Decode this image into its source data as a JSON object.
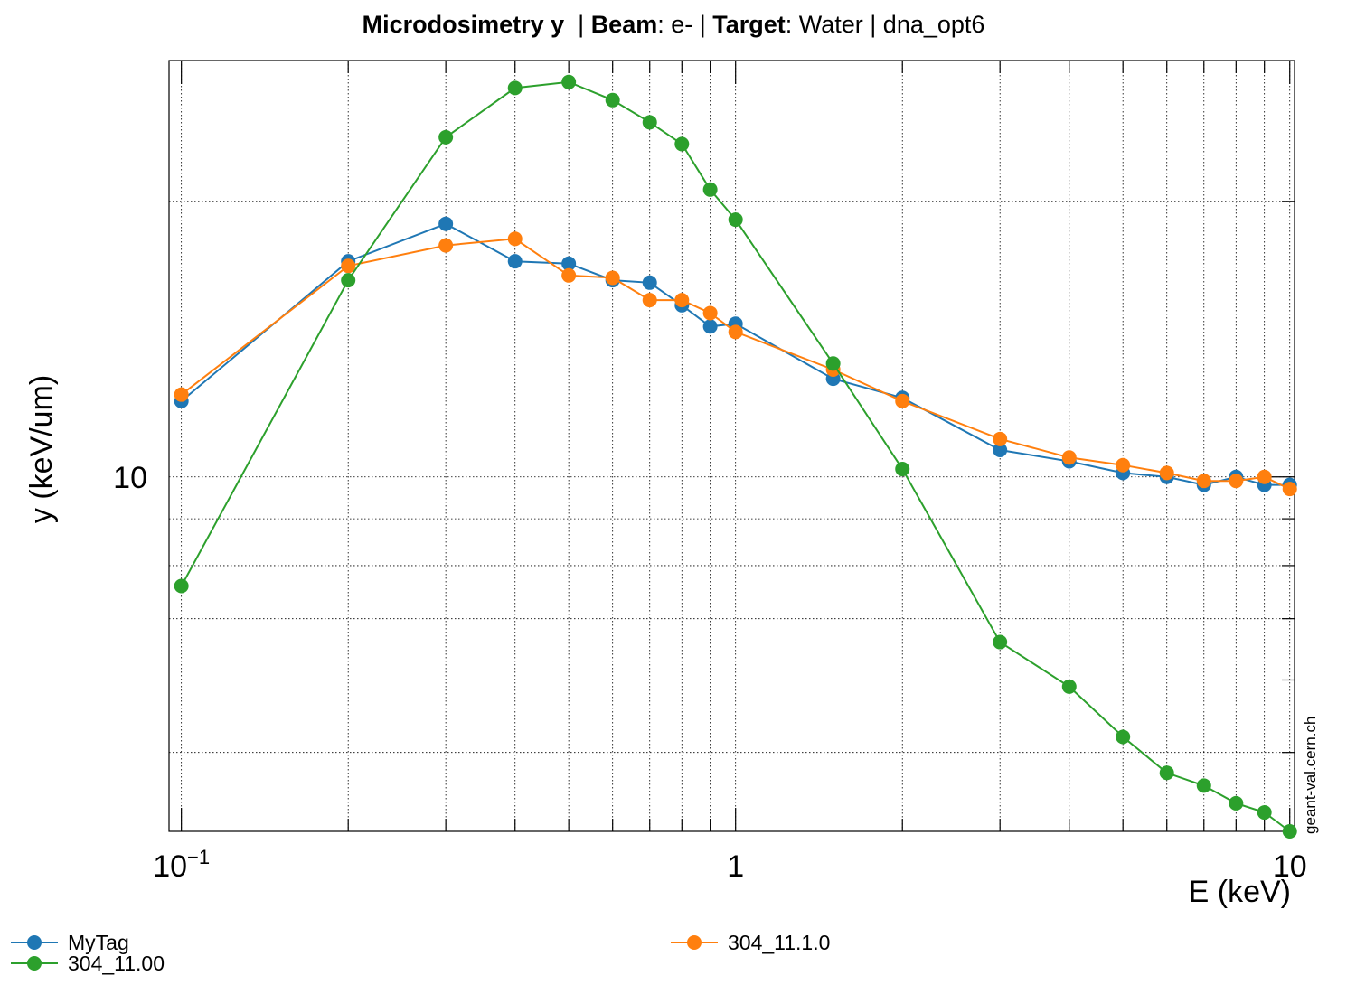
{
  "title": {
    "prefix": "Microdosimetry y",
    "sep1": "  | ",
    "beam_label": "Beam",
    "beam_value": ": e- | ",
    "target_label": "Target",
    "target_value": ": Water | dna_opt6"
  },
  "watermark": "geant-val.cern.ch",
  "chart_data": {
    "type": "line",
    "xlabel": "E (keV)",
    "ylabel": "y (keV/um)",
    "xscale": "log",
    "yscale": "log",
    "xlim": [
      0.095,
      10.2
    ],
    "ylim": [
      4.1,
      28.5
    ],
    "x_ticks": [
      {
        "value": 0.1,
        "base": "10",
        "exp": "−1"
      },
      {
        "value": 1,
        "base": "1",
        "exp": ""
      },
      {
        "value": 10,
        "base": "10",
        "exp": ""
      }
    ],
    "y_ticks": [
      {
        "value": 10,
        "label": "10"
      }
    ],
    "grid": true,
    "legend_position": "bottom",
    "series": [
      {
        "name": "MyTag",
        "color": "#1f77b4",
        "x": [
          0.1,
          0.2,
          0.3,
          0.4,
          0.5,
          0.6,
          0.7,
          0.8,
          0.9,
          1,
          1.5,
          2,
          3,
          4,
          5,
          6,
          7,
          8,
          9,
          10
        ],
        "y": [
          12.1,
          17.2,
          18.9,
          17.2,
          17.1,
          16.4,
          16.3,
          15.4,
          14.6,
          14.7,
          12.8,
          12.2,
          10.7,
          10.4,
          10.1,
          10.0,
          9.8,
          10.0,
          9.8,
          9.8
        ]
      },
      {
        "name": "304_11.1.0",
        "color": "#ff7f0e",
        "x": [
          0.1,
          0.2,
          0.3,
          0.4,
          0.5,
          0.6,
          0.7,
          0.8,
          0.9,
          1,
          1.5,
          2,
          3,
          4,
          5,
          6,
          7,
          8,
          9,
          10
        ],
        "y": [
          12.3,
          17.0,
          17.9,
          18.2,
          16.6,
          16.5,
          15.6,
          15.6,
          15.1,
          14.4,
          13.1,
          12.1,
          11.0,
          10.5,
          10.3,
          10.1,
          9.9,
          9.9,
          10.0,
          9.7
        ]
      },
      {
        "name": "304_11.00",
        "color": "#2ca02c",
        "x": [
          0.1,
          0.2,
          0.3,
          0.4,
          0.5,
          0.6,
          0.7,
          0.8,
          0.9,
          1,
          1.5,
          2,
          3,
          4,
          5,
          6,
          7,
          8,
          9,
          10
        ],
        "y": [
          7.6,
          16.4,
          23.5,
          26.6,
          27.0,
          25.8,
          24.4,
          23.1,
          20.6,
          19.1,
          13.3,
          10.2,
          6.6,
          5.9,
          5.2,
          4.75,
          4.6,
          4.4,
          4.3,
          4.1
        ]
      }
    ]
  }
}
